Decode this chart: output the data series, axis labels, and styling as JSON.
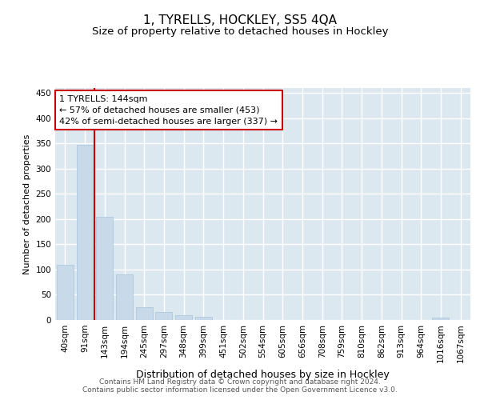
{
  "title": "1, TYRELLS, HOCKLEY, SS5 4QA",
  "subtitle": "Size of property relative to detached houses in Hockley",
  "xlabel": "Distribution of detached houses by size in Hockley",
  "ylabel": "Number of detached properties",
  "footer_line1": "Contains HM Land Registry data © Crown copyright and database right 2024.",
  "footer_line2": "Contains public sector information licensed under the Open Government Licence v3.0.",
  "categories": [
    "40sqm",
    "91sqm",
    "143sqm",
    "194sqm",
    "245sqm",
    "297sqm",
    "348sqm",
    "399sqm",
    "451sqm",
    "502sqm",
    "554sqm",
    "605sqm",
    "656sqm",
    "708sqm",
    "759sqm",
    "810sqm",
    "862sqm",
    "913sqm",
    "964sqm",
    "1016sqm",
    "1067sqm"
  ],
  "values": [
    109,
    347,
    204,
    91,
    25,
    16,
    10,
    6,
    0,
    0,
    0,
    0,
    0,
    0,
    0,
    0,
    0,
    0,
    0,
    4,
    0
  ],
  "bar_color": "#c8daea",
  "bar_edge_color": "#a8c4dc",
  "vline_x": 1.5,
  "vline_color": "#cc0000",
  "annotation_text": "1 TYRELLS: 144sqm\n← 57% of detached houses are smaller (453)\n42% of semi-detached houses are larger (337) →",
  "annotation_box_facecolor": "#ffffff",
  "annotation_box_edgecolor": "#cc0000",
  "ylim": [
    0,
    460
  ],
  "yticks": [
    0,
    50,
    100,
    150,
    200,
    250,
    300,
    350,
    400,
    450
  ],
  "fig_facecolor": "#ffffff",
  "plot_facecolor": "#dce8f0",
  "grid_color": "#ffffff",
  "title_fontsize": 11,
  "subtitle_fontsize": 9.5,
  "ylabel_fontsize": 8,
  "xlabel_fontsize": 9,
  "tick_fontsize": 7.5,
  "footer_fontsize": 6.5
}
